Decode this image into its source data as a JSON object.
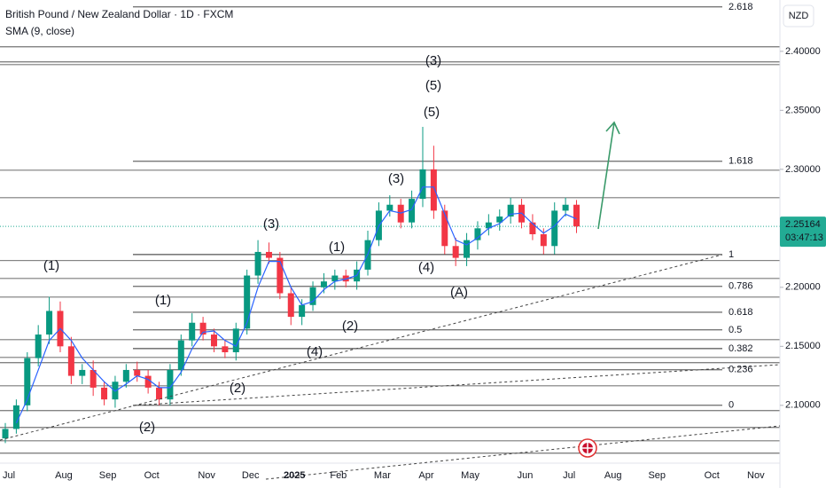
{
  "chart_data": {
    "type": "candlestick",
    "title": "British Pound / New Zealand Dollar · 1D · FXCM",
    "indicator": {
      "name": "SMA (9, close)",
      "color": "#2962ff",
      "values": [
        null,
        2.085,
        2.105,
        2.13,
        2.155,
        2.165,
        2.155,
        2.14,
        2.13,
        2.12,
        2.112,
        2.118,
        2.125,
        2.122,
        2.115,
        2.115,
        2.128,
        2.148,
        2.162,
        2.163,
        2.155,
        2.15,
        2.17,
        2.2,
        2.222,
        2.222,
        2.2,
        2.185,
        2.188,
        2.198,
        2.205,
        2.207,
        2.21,
        2.228,
        2.252,
        2.265,
        2.263,
        2.266,
        2.285,
        2.285,
        2.262,
        2.24,
        2.236,
        2.242,
        2.25,
        2.254,
        2.262,
        2.263,
        2.254,
        2.246,
        2.252,
        2.262,
        2.258,
        null,
        null,
        null,
        null,
        null,
        null,
        null,
        null,
        null,
        null,
        null,
        null,
        null,
        null,
        null,
        null,
        null,
        null
      ]
    },
    "currency": "NZD",
    "categories": [
      "Jul",
      null,
      null,
      null,
      null,
      "Aug",
      null,
      null,
      null,
      "Sep",
      null,
      null,
      null,
      "Oct",
      null,
      null,
      null,
      null,
      "Nov",
      null,
      null,
      null,
      "Dec",
      null,
      null,
      null,
      "2025",
      null,
      null,
      null,
      "Feb",
      null,
      null,
      null,
      "Mar",
      null,
      null,
      null,
      "Apr",
      null,
      null,
      null,
      "May",
      null,
      null,
      null,
      null,
      "Jun",
      null,
      null,
      null,
      "Jul",
      null,
      null,
      null,
      "Aug",
      null,
      null,
      null,
      "Sep",
      null,
      null,
      null,
      null,
      "Oct",
      null,
      null,
      null,
      "Nov",
      null,
      null
    ],
    "open": [
      2.072,
      2.08,
      2.1,
      2.14,
      2.16,
      2.18,
      2.15,
      2.125,
      2.13,
      2.115,
      2.105,
      2.12,
      2.13,
      2.125,
      2.115,
      2.105,
      2.13,
      2.155,
      2.17,
      2.16,
      2.15,
      2.145,
      2.165,
      2.21,
      2.23,
      2.225,
      2.195,
      2.175,
      2.185,
      2.2,
      2.205,
      2.21,
      2.205,
      2.215,
      2.24,
      2.265,
      2.27,
      2.255,
      2.275,
      2.3,
      2.265,
      2.235,
      2.225,
      2.24,
      2.25,
      2.255,
      2.26,
      2.27,
      2.255,
      2.245,
      2.235,
      2.265,
      2.27,
      null,
      null,
      null,
      null,
      null,
      null,
      null,
      null,
      null,
      null,
      null,
      null,
      null,
      null,
      null,
      null,
      null,
      null
    ],
    "high": [
      2.085,
      2.105,
      2.145,
      2.168,
      2.192,
      2.188,
      2.158,
      2.135,
      2.138,
      2.12,
      2.125,
      2.135,
      2.137,
      2.13,
      2.12,
      2.135,
      2.16,
      2.178,
      2.175,
      2.165,
      2.156,
      2.17,
      2.215,
      2.24,
      2.238,
      2.23,
      2.2,
      2.19,
      2.205,
      2.212,
      2.215,
      2.215,
      2.222,
      2.248,
      2.272,
      2.278,
      2.275,
      2.282,
      2.336,
      2.32,
      2.27,
      2.242,
      2.246,
      2.256,
      2.262,
      2.266,
      2.276,
      2.275,
      2.262,
      2.25,
      2.272,
      2.276,
      2.274,
      null,
      null,
      null,
      null,
      null,
      null,
      null,
      null,
      null,
      null,
      null,
      null,
      null,
      null,
      null,
      null,
      null,
      null
    ],
    "low": [
      2.068,
      2.076,
      2.095,
      2.133,
      2.152,
      2.145,
      2.118,
      2.118,
      2.108,
      2.1,
      2.098,
      2.115,
      2.12,
      2.11,
      2.1,
      2.1,
      2.125,
      2.15,
      2.155,
      2.145,
      2.14,
      2.138,
      2.16,
      2.203,
      2.22,
      2.19,
      2.168,
      2.168,
      2.18,
      2.195,
      2.198,
      2.2,
      2.198,
      2.21,
      2.235,
      2.26,
      2.25,
      2.25,
      2.268,
      2.258,
      2.228,
      2.218,
      2.218,
      2.232,
      2.244,
      2.248,
      2.254,
      2.25,
      2.24,
      2.228,
      2.228,
      2.26,
      2.246,
      null,
      null,
      null,
      null,
      null,
      null,
      null,
      null,
      null,
      null,
      null,
      null,
      null,
      null,
      null,
      null,
      null,
      null
    ],
    "close": [
      2.08,
      2.1,
      2.14,
      2.16,
      2.18,
      2.15,
      2.125,
      2.13,
      2.115,
      2.105,
      2.12,
      2.13,
      2.125,
      2.115,
      2.105,
      2.13,
      2.155,
      2.17,
      2.16,
      2.15,
      2.145,
      2.165,
      2.21,
      2.23,
      2.225,
      2.195,
      2.175,
      2.185,
      2.2,
      2.205,
      2.21,
      2.205,
      2.215,
      2.24,
      2.265,
      2.27,
      2.255,
      2.275,
      2.3,
      2.265,
      2.235,
      2.225,
      2.24,
      2.25,
      2.255,
      2.26,
      2.27,
      2.255,
      2.245,
      2.235,
      2.265,
      2.27,
      2.25164,
      null,
      null,
      null,
      null,
      null,
      null,
      null,
      null,
      null,
      null,
      null,
      null,
      null,
      null,
      null,
      null,
      null,
      null
    ],
    "up_color": "#089981",
    "down_color": "#f23645",
    "ylim": [
      2.051,
      2.4435
    ],
    "yticks": [
      {
        "value": 2.4,
        "label": "2.40000"
      },
      {
        "value": 2.35,
        "label": "2.35000"
      },
      {
        "value": 2.3,
        "label": "2.30000"
      },
      {
        "value": 2.25,
        "label": "2.25000"
      },
      {
        "value": 2.2,
        "label": "2.20000"
      },
      {
        "value": 2.15,
        "label": "2.15000"
      },
      {
        "value": 2.1,
        "label": "2.10000"
      }
    ],
    "last_price": 2.25164,
    "last_price_color": "#22ab94",
    "countdown": "03:47:13",
    "fib_levels": [
      {
        "ratio": 2.618,
        "price": 2.4376
      },
      {
        "ratio": 1.618,
        "price": 2.3068
      },
      {
        "ratio": 1,
        "price": 2.2278
      },
      {
        "ratio": 0.786,
        "price": 2.2008
      },
      {
        "ratio": 0.618,
        "price": 2.1789
      },
      {
        "ratio": 0.5,
        "price": 2.1639
      },
      {
        "ratio": 0.382,
        "price": 2.1481
      },
      {
        "ratio": 0.236,
        "price": 2.1301
      },
      {
        "ratio": 0,
        "price": 2.1
      }
    ],
    "levels": [
      2.4038,
      2.391,
      2.3887,
      2.2992,
      2.2759,
      2.2226,
      2.2075,
      2.1917,
      2.1556,
      2.1406,
      2.1361,
      2.1165,
      2.0955,
      2.0812,
      2.0699,
      2.0594
    ],
    "wave_labels": [
      {
        "text": "(3)",
        "color": "#3d74c4"
      },
      {
        "text": "(5)",
        "color": "#3a9a6a"
      },
      {
        "text": "(5)",
        "color": "#e03131"
      },
      {
        "text": "(3)",
        "color": "#e03131"
      },
      {
        "text": "(4)",
        "color": "#e03131"
      },
      {
        "text": "(A)",
        "color": "#131722"
      },
      {
        "text": "(1)",
        "color": "#e03131"
      },
      {
        "text": "(2)",
        "color": "#e03131"
      },
      {
        "text": "(3)",
        "color": "#3a9a6a"
      },
      {
        "text": "(4)",
        "color": "#3a9a6a"
      },
      {
        "text": "(1)",
        "color": "#3a9a6a"
      },
      {
        "text": "(2)",
        "color": "#3a9a6a"
      },
      {
        "text": "(1)",
        "color": "#3d74c4"
      },
      {
        "text": "(2)",
        "color": "#3d74c4"
      }
    ]
  }
}
